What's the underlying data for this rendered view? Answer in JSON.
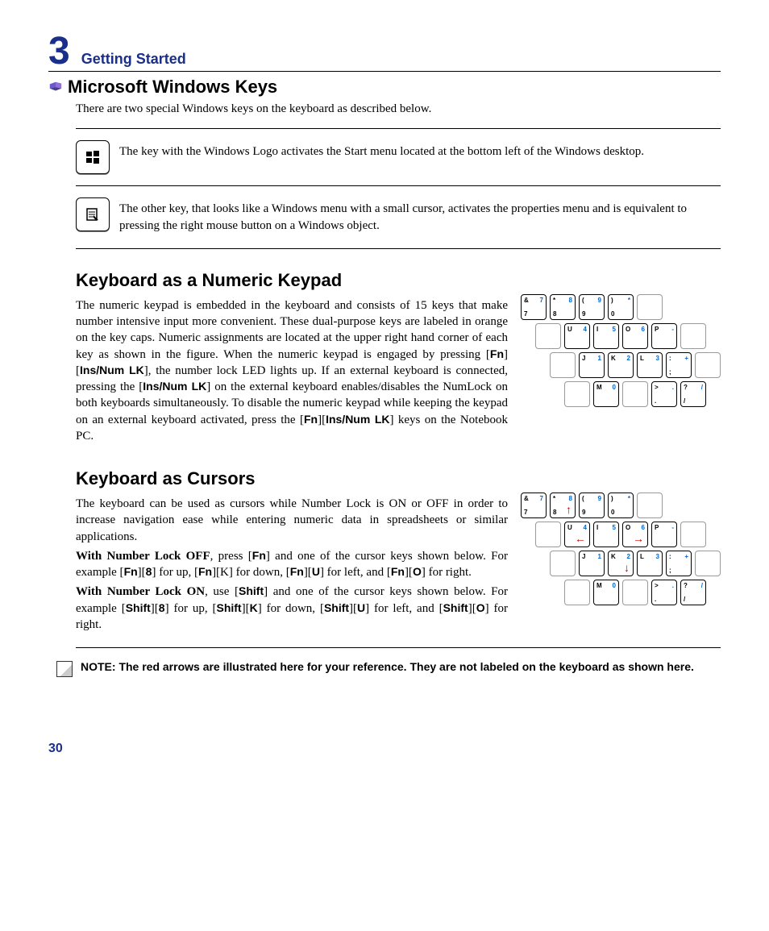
{
  "chapter": {
    "number": "3",
    "title": "Getting Started"
  },
  "section1": {
    "heading": "Microsoft Windows Keys",
    "intro": "There are two special Windows keys on the keyboard as described below.",
    "key1_desc": "The key with the Windows Logo activates the Start menu located at the bottom left of the Windows desktop.",
    "key2_desc": "The other key, that looks like a Windows menu with a small cursor, activates the properties menu and is equivalent to pressing the right mouse button on a Windows object."
  },
  "section2": {
    "heading": "Keyboard as a Numeric Keypad",
    "para1_a": "The numeric keypad is embedded in the keyboard and consists of 15 keys that make number intensive input more convenient. These dual-purpose keys are labeled in orange on the key caps. Numeric assignments are located at the upper right hand corner of each key as shown in the figure. When the numeric keypad is engaged by pressing [",
    "fn1": "Fn",
    "mid1": "][",
    "ins1": "Ins/Num LK",
    "para1_b": "], the number lock LED lights up. If an external keyboard is connected, pressing the [",
    "ins2": "Ins/Num LK",
    "para1_c": "] on the external keyboard enables/disables the NumLock on both keyboards simultaneously. To disable the numeric keypad while keeping the keypad on an external keyboard activated, press the  [",
    "fn2": "Fn",
    "mid2": "][",
    "ins3": "Ins/Num LK",
    "para1_d": "] keys on the Notebook PC."
  },
  "section3": {
    "heading": "Keyboard as Cursors",
    "p1": "The keyboard can be used as cursors while Number Lock is ON or OFF in order to increase navigation ease while entering numeric data in spreadsheets or similar applications.",
    "p2_lead": "With Number Lock OFF",
    "p2_a": ", press [",
    "p2_fn1": "Fn",
    "p2_b": "] and one of the cursor keys shown below. For example [",
    "p2_fn2": "Fn",
    "p2_c": "][",
    "p2_8": "8",
    "p2_d": "] for up, [",
    "p2_fn3": "Fn",
    "p2_e": "][K] for down, [",
    "p2_fn4": "Fn",
    "p2_f": "][",
    "p2_U": "U",
    "p2_g": "] for left, and [",
    "p2_fn5": "Fn",
    "p2_h": "][",
    "p2_O": "O",
    "p2_i": "] for right.",
    "p3_lead": "With Number Lock ON",
    "p3_a": ", use [",
    "p3_s1": "Shift",
    "p3_b": "] and one of the cursor keys shown below. For example [",
    "p3_s2": "Shift",
    "p3_c": "][",
    "p3_8": "8",
    "p3_d": "] for up, [",
    "p3_s3": "Shift",
    "p3_e": "][",
    "p3_K": "K",
    "p3_f": "] for down, [",
    "p3_s4": "Shift",
    "p3_g": "][",
    "p3_U": "U",
    "p3_h": "] for left, and [",
    "p3_s5": "Shift",
    "p3_i": "][",
    "p3_O": "O",
    "p3_j": "] for right."
  },
  "note": "NOTE: The red arrows are illustrated here for your reference. They are not labeled on the keyboard as shown here.",
  "page": "30",
  "keypad1": {
    "rows": [
      {
        "offset": 0,
        "keys": [
          {
            "tl": "&",
            "tr": "7",
            "bl": "7"
          },
          {
            "tl": "*",
            "tr": "8",
            "bl": "8"
          },
          {
            "tl": "(",
            "tr": "9",
            "bl": "9"
          },
          {
            "tl": ")",
            "tr": "*",
            "bl": "0"
          },
          {
            "blank": true
          }
        ]
      },
      {
        "offset": 18,
        "keys": [
          {
            "blank": true
          },
          {
            "tl": "U",
            "tr": "4"
          },
          {
            "tl": "I",
            "tr": "5"
          },
          {
            "tl": "O",
            "tr": "6"
          },
          {
            "tl": "P",
            "tr": "-"
          },
          {
            "blank": true
          }
        ]
      },
      {
        "offset": 36,
        "keys": [
          {
            "blank": true
          },
          {
            "tl": "J",
            "tr": "1"
          },
          {
            "tl": "K",
            "tr": "2"
          },
          {
            "tl": "L",
            "tr": "3"
          },
          {
            "tl": ":",
            "tr": "+",
            "bl": ";"
          },
          {
            "blank": true
          }
        ]
      },
      {
        "offset": 54,
        "keys": [
          {
            "blank": true
          },
          {
            "tl": "M",
            "tr": "0"
          },
          {
            "blank": true
          },
          {
            "tl": ">",
            "tr": ".",
            "bl": "."
          },
          {
            "tl": "?",
            "tr": "/",
            "bl": "/"
          }
        ]
      }
    ]
  },
  "keypad2": {
    "rows": [
      {
        "offset": 0,
        "keys": [
          {
            "tl": "&",
            "tr": "7",
            "bl": "7"
          },
          {
            "tl": "*",
            "tr": "8",
            "bl": "8",
            "arrow": "↑"
          },
          {
            "tl": "(",
            "tr": "9",
            "bl": "9"
          },
          {
            "tl": ")",
            "tr": "*",
            "bl": "0"
          },
          {
            "blank": true
          }
        ]
      },
      {
        "offset": 18,
        "keys": [
          {
            "blank": true
          },
          {
            "tl": "U",
            "tr": "4",
            "arrow": "←"
          },
          {
            "tl": "I",
            "tr": "5"
          },
          {
            "tl": "O",
            "tr": "6",
            "arrow": "→"
          },
          {
            "tl": "P",
            "tr": "-"
          },
          {
            "blank": true
          }
        ]
      },
      {
        "offset": 36,
        "keys": [
          {
            "blank": true
          },
          {
            "tl": "J",
            "tr": "1"
          },
          {
            "tl": "K",
            "tr": "2",
            "arrow": "↓"
          },
          {
            "tl": "L",
            "tr": "3"
          },
          {
            "tl": ":",
            "tr": "+",
            "bl": ";"
          },
          {
            "blank": true
          }
        ]
      },
      {
        "offset": 54,
        "keys": [
          {
            "blank": true
          },
          {
            "tl": "M",
            "tr": "0"
          },
          {
            "blank": true
          },
          {
            "tl": ">",
            "tr": ".",
            "bl": "."
          },
          {
            "tl": "?",
            "tr": "/",
            "bl": "/"
          }
        ]
      }
    ]
  },
  "colors": {
    "accent_blue": "#1a2f8a",
    "key_blue": "#0066cc",
    "arrow_red": "#d00000"
  }
}
